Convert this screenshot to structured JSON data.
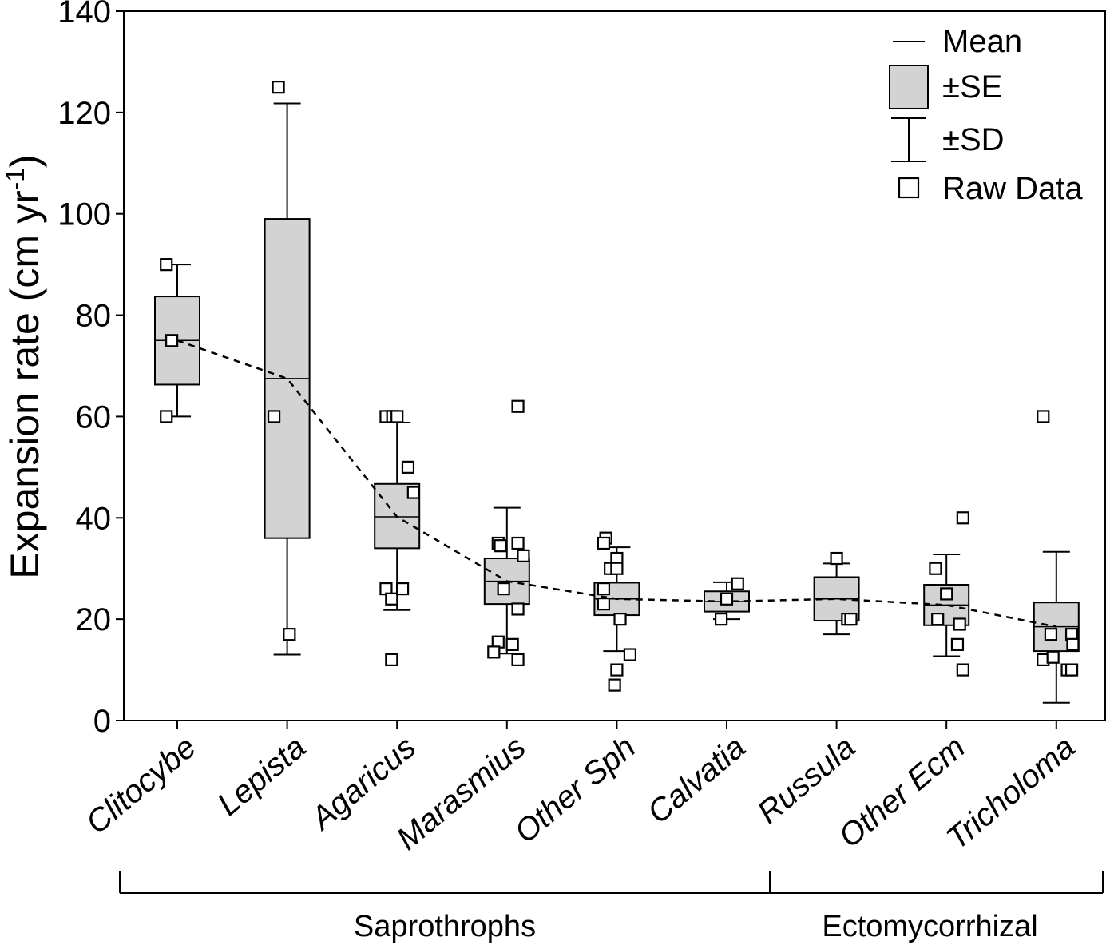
{
  "chart_data": {
    "type": "box",
    "ylabel": "Expansion rate (cm yr",
    "ylabel_sup": "-1",
    "ylabel_close": ")",
    "xlabel": "",
    "ylim": [
      0,
      140
    ],
    "yticks": [
      0,
      20,
      40,
      60,
      80,
      100,
      120,
      140
    ],
    "grid": false,
    "legend_position": "top-right",
    "legend": {
      "mean": "Mean",
      "se": "±SE",
      "sd": "±SD",
      "raw": "Raw Data"
    },
    "colors": {
      "box_fill": "#d3d3d3",
      "line": "#000000",
      "marker_fill": "#ffffff"
    },
    "categories": [
      "Clitocybe",
      "Lepista",
      "Agaricus",
      "Marasmius",
      "Other Sph",
      "Calvatia",
      "Russula",
      "Other Ecm",
      "Tricholoma"
    ],
    "stats": [
      {
        "mean": 75,
        "se_low": 66.3,
        "se_high": 83.7,
        "sd_low": 60,
        "sd_high": 90
      },
      {
        "mean": 67.5,
        "se_low": 36,
        "se_high": 99,
        "sd_low": 13,
        "sd_high": 121.8
      },
      {
        "mean": 40.2,
        "se_low": 34,
        "se_high": 46.7,
        "sd_low": 21.8,
        "sd_high": 58.8
      },
      {
        "mean": 27.5,
        "se_low": 23,
        "se_high": 32,
        "sd_low": 13.2,
        "sd_high": 42
      },
      {
        "mean": 24,
        "se_low": 20.8,
        "se_high": 27.2,
        "sd_low": 13.7,
        "sd_high": 34.2
      },
      {
        "mean": 23.5,
        "se_low": 21.5,
        "se_high": 25.5,
        "sd_low": 20,
        "sd_high": 27.3
      },
      {
        "mean": 24,
        "se_low": 19.7,
        "se_high": 28.3,
        "sd_low": 17,
        "sd_high": 31
      },
      {
        "mean": 22.8,
        "se_low": 18.8,
        "se_high": 26.8,
        "sd_low": 12.7,
        "sd_high": 32.8
      },
      {
        "mean": 18.5,
        "se_low": 13.7,
        "se_high": 23.3,
        "sd_low": 3.5,
        "sd_high": 33.3
      }
    ],
    "raw_data": [
      [
        [
          -0.1,
          90
        ],
        [
          -0.1,
          60
        ],
        [
          -0.05,
          75
        ]
      ],
      [
        [
          -0.08,
          125
        ],
        [
          -0.12,
          60
        ],
        [
          0.02,
          17
        ]
      ],
      [
        [
          -0.1,
          60
        ],
        [
          -0.04,
          60
        ],
        [
          0.0,
          60
        ],
        [
          0.1,
          50
        ],
        [
          0.15,
          45
        ],
        [
          -0.1,
          26
        ],
        [
          -0.05,
          24
        ],
        [
          0.05,
          26
        ],
        [
          -0.05,
          12
        ]
      ],
      [
        [
          -0.08,
          35
        ],
        [
          -0.06,
          34.5
        ],
        [
          0.1,
          35
        ],
        [
          0.15,
          32.5
        ],
        [
          -0.03,
          26
        ],
        [
          0.1,
          22
        ],
        [
          -0.08,
          15.5
        ],
        [
          -0.12,
          13.5
        ],
        [
          0.05,
          15
        ],
        [
          0.1,
          12
        ],
        [
          0.1,
          62
        ]
      ],
      [
        [
          -0.1,
          36
        ],
        [
          -0.12,
          35
        ],
        [
          0.0,
          32
        ],
        [
          -0.06,
          30
        ],
        [
          0.0,
          30
        ],
        [
          -0.12,
          26
        ],
        [
          -0.12,
          23
        ],
        [
          0.03,
          20
        ],
        [
          0.12,
          13
        ],
        [
          0.0,
          10
        ],
        [
          -0.02,
          7
        ]
      ],
      [
        [
          0.1,
          27
        ],
        [
          0.0,
          24
        ],
        [
          -0.05,
          20
        ]
      ],
      [
        [
          0.0,
          32
        ],
        [
          0.1,
          20
        ],
        [
          0.13,
          20
        ]
      ],
      [
        [
          0.15,
          40
        ],
        [
          -0.1,
          30
        ],
        [
          0.0,
          25
        ],
        [
          -0.08,
          20
        ],
        [
          0.12,
          19
        ],
        [
          0.1,
          15
        ],
        [
          0.15,
          10
        ]
      ],
      [
        [
          -0.12,
          60
        ],
        [
          -0.05,
          17
        ],
        [
          0.14,
          17
        ],
        [
          0.15,
          15
        ],
        [
          -0.12,
          12
        ],
        [
          -0.03,
          12.5
        ],
        [
          0.1,
          10
        ],
        [
          0.14,
          10
        ]
      ]
    ],
    "groups": [
      {
        "label": "Saprothrophs",
        "from": 0,
        "to": 5
      },
      {
        "label": "Ectomycorrhizal",
        "from": 6,
        "to": 8
      }
    ]
  }
}
